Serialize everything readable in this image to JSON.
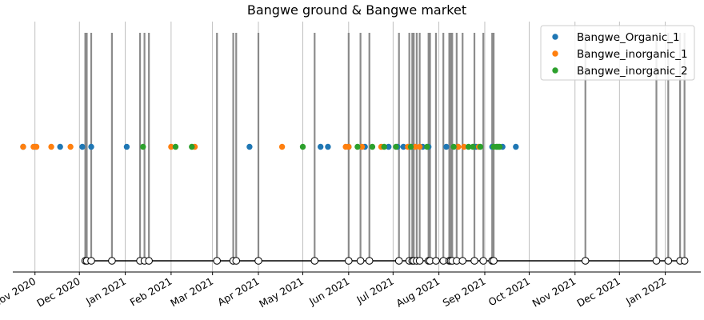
{
  "chart_data": {
    "type": "scatter",
    "title": "Bangwe ground & Bangwe market",
    "xlabel": "",
    "ylabel": "",
    "xlim": [
      "2020-10-17",
      "2022-01-25"
    ],
    "x_tick_labels": [
      {
        "date": "2020-11-01",
        "label": "Nov 2020"
      },
      {
        "date": "2020-12-01",
        "label": "Dec 2020"
      },
      {
        "date": "2021-01-01",
        "label": "Jan 2021"
      },
      {
        "date": "2021-02-01",
        "label": "Feb 2021"
      },
      {
        "date": "2021-03-01",
        "label": "Mar 2021"
      },
      {
        "date": "2021-04-01",
        "label": "Apr 2021"
      },
      {
        "date": "2021-05-01",
        "label": "May 2021"
      },
      {
        "date": "2021-06-01",
        "label": "Jun 2021"
      },
      {
        "date": "2021-07-01",
        "label": "Jul 2021"
      },
      {
        "date": "2021-08-01",
        "label": "Aug 2021"
      },
      {
        "date": "2021-09-01",
        "label": "Sep 2021"
      },
      {
        "date": "2021-10-01",
        "label": "Oct 2021"
      },
      {
        "date": "2021-11-01",
        "label": "Nov 2021"
      },
      {
        "date": "2021-12-01",
        "label": "Dec 2021"
      },
      {
        "date": "2022-01-01",
        "label": "Jan 2022"
      }
    ],
    "grid": "x",
    "legend_position": "top-right",
    "series": [
      {
        "name": "Bangwe_Organic_1",
        "color": "#1f77b4",
        "dates": [
          "2020-10-24",
          "2020-11-01",
          "2020-11-18",
          "2020-12-03",
          "2020-12-09",
          "2021-01-02",
          "2021-03-26",
          "2021-05-13",
          "2021-05-18",
          "2021-06-01",
          "2021-06-12",
          "2021-06-28",
          "2021-07-04",
          "2021-07-08",
          "2021-07-15",
          "2021-07-21",
          "2021-07-25",
          "2021-08-06",
          "2021-08-14",
          "2021-08-26",
          "2021-09-06",
          "2021-09-13",
          "2021-09-22"
        ],
        "y": 0.5
      },
      {
        "name": "Bangwe_inorganic_1",
        "color": "#ff7f0e",
        "dates": [
          "2020-10-24",
          "2020-10-31",
          "2020-11-02",
          "2020-11-12",
          "2020-11-25",
          "2021-02-01",
          "2021-02-17",
          "2021-04-17",
          "2021-05-30",
          "2021-06-01",
          "2021-06-10",
          "2021-06-23",
          "2021-07-11",
          "2021-07-16",
          "2021-07-19",
          "2021-08-14",
          "2021-08-18",
          "2021-08-28"
        ],
        "y": 0.5
      },
      {
        "name": "Bangwe_inorganic_2",
        "color": "#2ca02c",
        "dates": [
          "2021-01-13",
          "2021-02-04",
          "2021-02-15",
          "2021-05-01",
          "2021-06-07",
          "2021-06-17",
          "2021-06-25",
          "2021-07-03",
          "2021-07-13",
          "2021-07-24",
          "2021-08-11",
          "2021-08-21",
          "2021-08-24",
          "2021-08-29",
          "2021-09-07",
          "2021-09-09",
          "2021-09-10",
          "2021-09-11"
        ],
        "y": 0.5
      }
    ],
    "events": {
      "color": "#808080",
      "marker_face": "#ffffff",
      "dates": [
        "2020-12-05",
        "2020-12-06",
        "2020-12-09",
        "2020-12-23",
        "2021-01-11",
        "2021-01-14",
        "2021-01-17",
        "2021-03-04",
        "2021-03-15",
        "2021-03-17",
        "2021-04-01",
        "2021-05-09",
        "2021-06-01",
        "2021-06-09",
        "2021-06-15",
        "2021-07-05",
        "2021-07-12",
        "2021-07-14",
        "2021-07-15",
        "2021-07-17",
        "2021-07-19",
        "2021-07-25",
        "2021-07-26",
        "2021-07-30",
        "2021-08-04",
        "2021-08-08",
        "2021-08-09",
        "2021-08-10",
        "2021-08-13",
        "2021-08-17",
        "2021-08-25",
        "2021-08-31",
        "2021-09-06",
        "2021-09-07",
        "2021-11-08",
        "2021-12-26",
        "2022-01-03",
        "2022-01-11",
        "2022-01-14"
      ]
    }
  }
}
